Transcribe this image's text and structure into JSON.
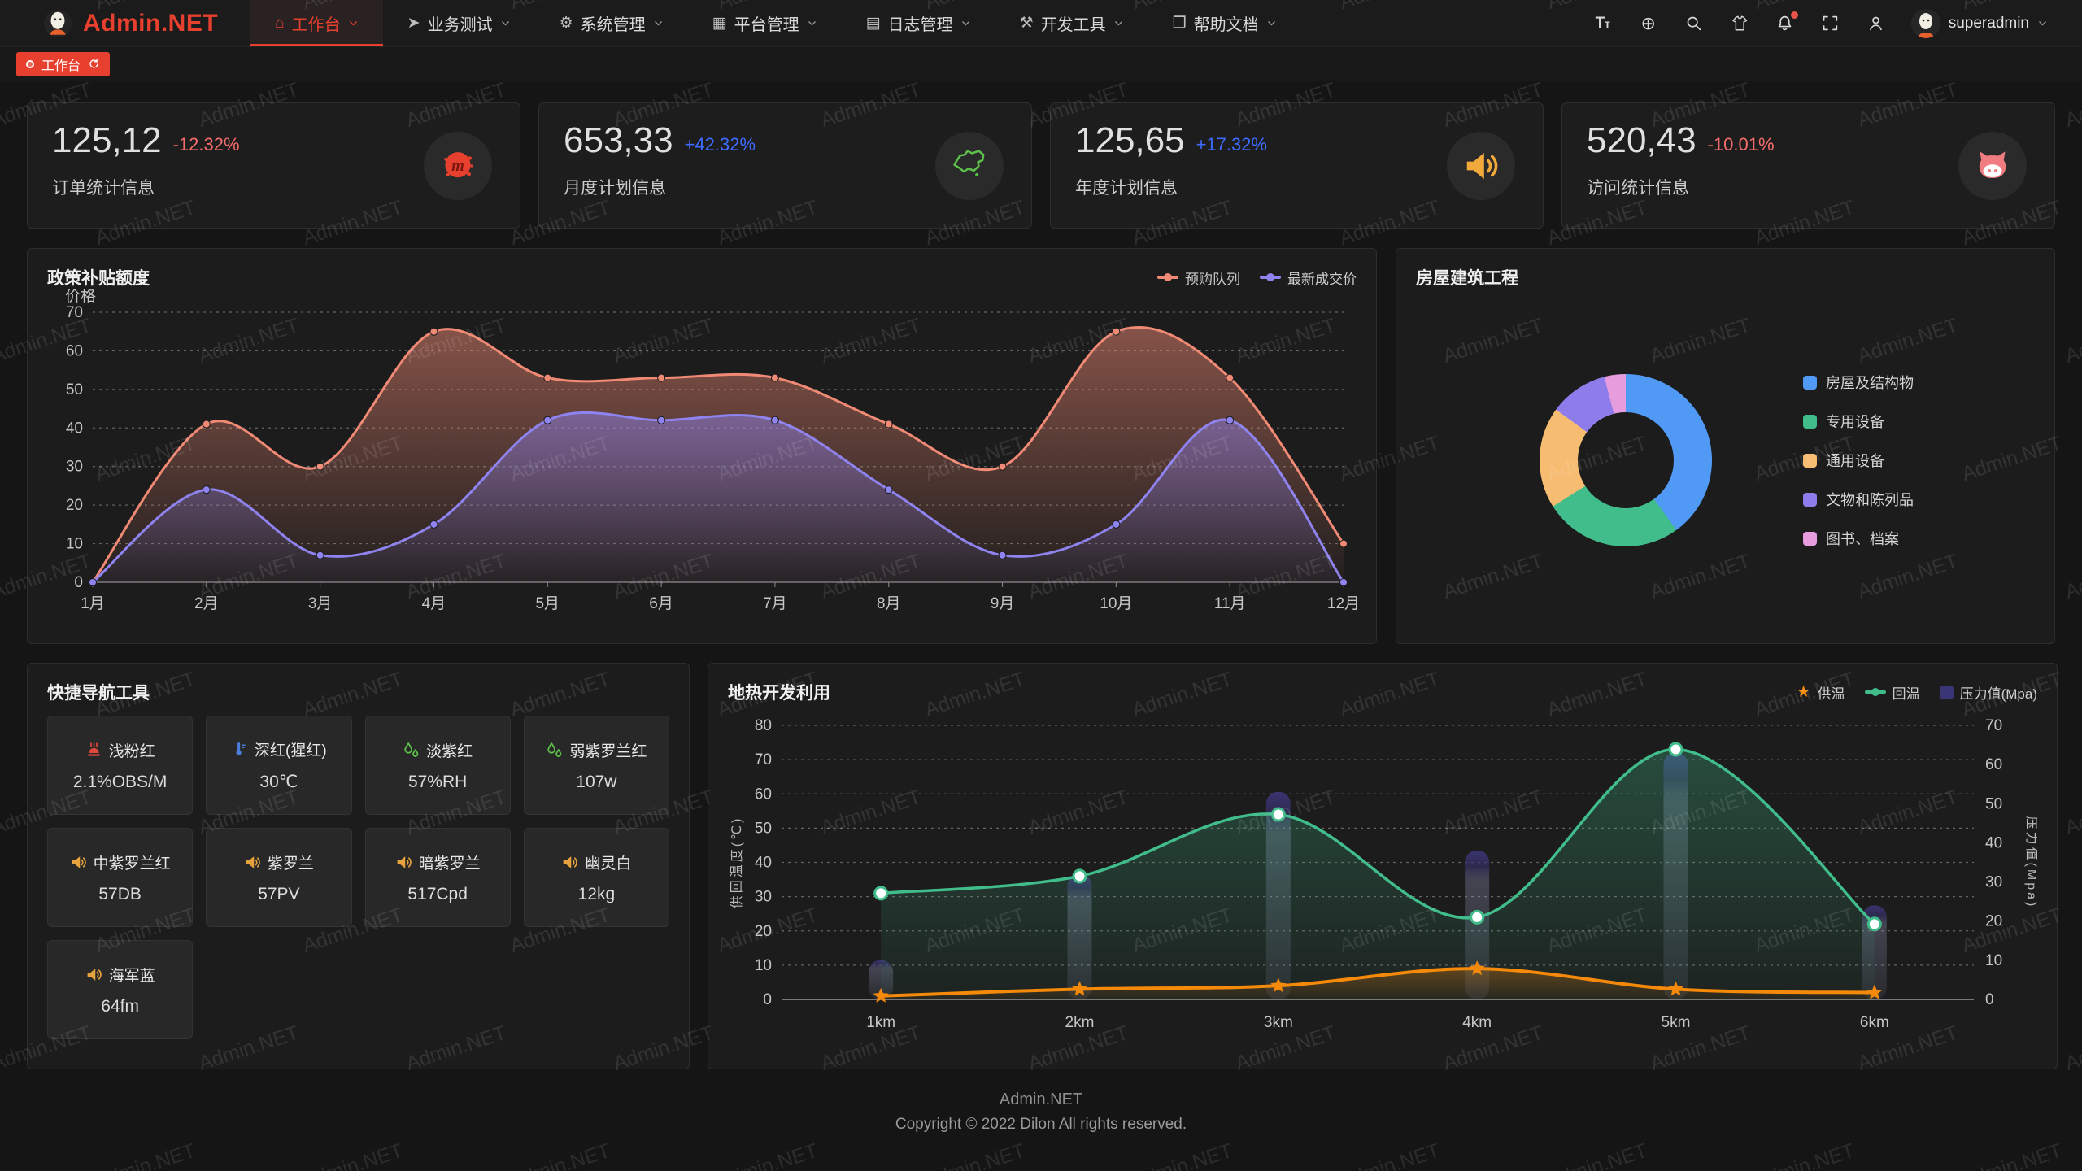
{
  "brand": {
    "name": "Admin.NET",
    "accent": "#E8402F"
  },
  "colors": {
    "accent": "#E8402F",
    "up_blue": "#3E6BFF",
    "down_red": "#F56C6C",
    "icon_circle": "#2A2A2A"
  },
  "watermark": "Admin.NET",
  "navbar": {
    "menus": [
      {
        "label": "工作台",
        "icon": "home-icon",
        "active": true
      },
      {
        "label": "业务测试",
        "icon": "nav-arrow-icon",
        "active": false
      },
      {
        "label": "系统管理",
        "icon": "gear-icon",
        "active": false
      },
      {
        "label": "平台管理",
        "icon": "grid-icon",
        "active": false
      },
      {
        "label": "日志管理",
        "icon": "log-icon",
        "active": false
      },
      {
        "label": "开发工具",
        "icon": "chip-icon",
        "active": false
      },
      {
        "label": "帮助文档",
        "icon": "book-icon",
        "active": false
      }
    ],
    "actions": [
      "font-size-icon",
      "language-icon",
      "search-icon",
      "theme-icon",
      "notification-bell-icon",
      "fullscreen-icon",
      "profile-icon"
    ],
    "user": {
      "name": "superadmin"
    }
  },
  "tagbar": {
    "tags": [
      {
        "label": "工作台",
        "active": true
      }
    ]
  },
  "stat_cards": [
    {
      "value": "125,12",
      "delta": "-12.32%",
      "trend": "down",
      "label": "订单统计信息",
      "icon": "meetup-icon",
      "icon_color": "#E8402F"
    },
    {
      "value": "653,33",
      "delta": "+42.32%",
      "trend": "up",
      "label": "月度计划信息",
      "icon": "china-map-icon",
      "icon_color": "#5CBF4A"
    },
    {
      "value": "125,65",
      "delta": "+17.32%",
      "trend": "up",
      "label": "年度计划信息",
      "icon": "speaker-icon",
      "icon_color": "#F2A93B"
    },
    {
      "value": "520,43",
      "delta": "-10.01%",
      "trend": "down",
      "label": "访问统计信息",
      "icon": "mascot-icon",
      "icon_color": "#F07C82"
    }
  ],
  "quick_nav": {
    "title": "快捷导航工具",
    "items": [
      {
        "icon": "heat-icon",
        "icon_color": "#E0483E",
        "label": "浅粉红",
        "value": "2.1%OBS/M"
      },
      {
        "icon": "thermometer-icon",
        "icon_color": "#4A7EDC",
        "label": "深红(猩红)",
        "value": "30℃"
      },
      {
        "icon": "humidity-icon",
        "icon_color": "#5CBF4A",
        "label": "淡紫红",
        "value": "57%RH"
      },
      {
        "icon": "humidity-icon",
        "icon_color": "#5CBF4A",
        "label": "弱紫罗兰红",
        "value": "107w"
      },
      {
        "icon": "speaker-icon",
        "icon_color": "#E6A23C",
        "label": "中紫罗兰红",
        "value": "57DB"
      },
      {
        "icon": "speaker-icon",
        "icon_color": "#E6A23C",
        "label": "紫罗兰",
        "value": "57PV"
      },
      {
        "icon": "speaker-icon",
        "icon_color": "#E6A23C",
        "label": "暗紫罗兰",
        "value": "517Cpd"
      },
      {
        "icon": "speaker-icon",
        "icon_color": "#E6A23C",
        "label": "幽灵白",
        "value": "12kg"
      },
      {
        "icon": "speaker-icon",
        "icon_color": "#E6A23C",
        "label": "海军蓝",
        "value": "64fm"
      }
    ]
  },
  "footer": {
    "title": "Admin.NET",
    "copyright": "Copyright © 2022 Dilon All rights reserved."
  },
  "chart_data": [
    {
      "type": "area",
      "title": "政策补贴额度",
      "ylabel": "价格",
      "categories": [
        "1月",
        "2月",
        "3月",
        "4月",
        "5月",
        "6月",
        "7月",
        "8月",
        "9月",
        "10月",
        "11月",
        "12月"
      ],
      "ylim": [
        0,
        70
      ],
      "ytick_step": 10,
      "grid": "dashed",
      "legend_position": "top-right",
      "series": [
        {
          "name": "预购队列",
          "color": "#F08A75",
          "values": [
            0,
            41,
            30,
            65,
            53,
            53,
            53,
            41,
            30,
            65,
            53,
            10
          ]
        },
        {
          "name": "最新成交价",
          "color": "#8F83F0",
          "values": [
            0,
            24,
            7,
            15,
            42,
            42,
            42,
            24,
            7,
            15,
            42,
            0
          ]
        }
      ]
    },
    {
      "type": "pie",
      "title": "房屋建筑工程",
      "donut": true,
      "legend_position": "right",
      "slices": [
        {
          "name": "房屋及结构物",
          "value": 40,
          "color": "#509AF5"
        },
        {
          "name": "专用设备",
          "value": 26,
          "color": "#41BD8B"
        },
        {
          "name": "通用设备",
          "value": 19,
          "color": "#F6BC71"
        },
        {
          "name": "文物和陈列品",
          "value": 11,
          "color": "#8D7CEA"
        },
        {
          "name": "图书、档案",
          "value": 4,
          "color": "#E59DDD"
        }
      ]
    },
    {
      "type": "line",
      "title": "地热开发利用",
      "categories": [
        "1km",
        "2km",
        "3km",
        "4km",
        "5km",
        "6km"
      ],
      "legend_position": "top-right",
      "grid": "dashed",
      "y_left": {
        "label": "供回温度(℃)",
        "min": 0,
        "max": 80,
        "tick_step": 10
      },
      "y_right": {
        "label": "压力值(Mpa)",
        "min": 0,
        "max": 70,
        "tick_step": 10
      },
      "series": [
        {
          "name": "供温",
          "kind": "line",
          "axis": "left",
          "color": "#F5890A",
          "marker": "star",
          "values": [
            1,
            3,
            4,
            9,
            3,
            2
          ]
        },
        {
          "name": "回温",
          "kind": "line",
          "axis": "left",
          "color": "#41BD8B",
          "marker": "circle",
          "values": [
            31,
            36,
            54,
            24,
            73,
            22
          ]
        },
        {
          "name": "压力值(Mpa)",
          "kind": "bar",
          "axis": "right",
          "color": "#9BA0C8",
          "cap_color": "#3A3575",
          "values": [
            10,
            32,
            53,
            38,
            63,
            24
          ]
        }
      ]
    }
  ]
}
